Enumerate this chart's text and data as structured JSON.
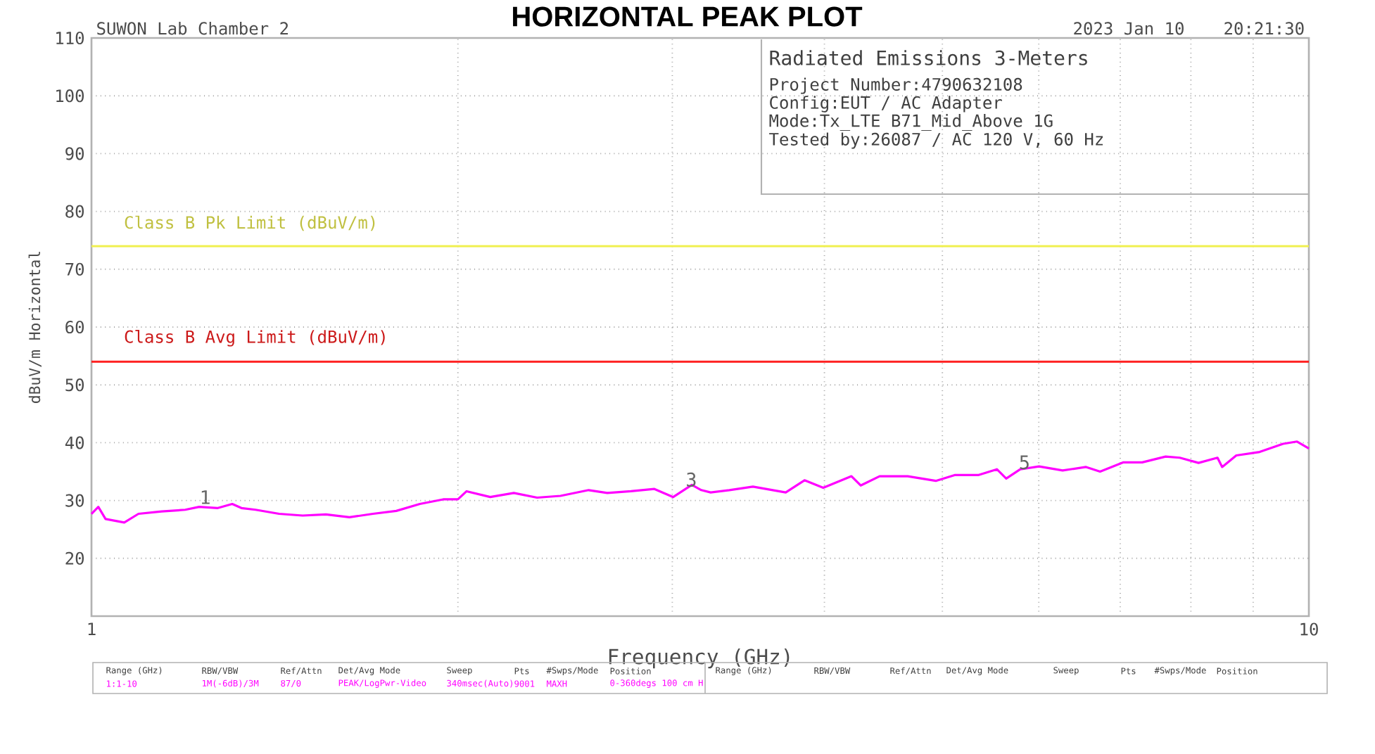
{
  "chart_data": {
    "type": "line",
    "title": "HORIZONTAL PEAK PLOT",
    "xlabel": "Frequency (GHz)",
    "ylabel": "dBuV/m Horizontal",
    "log": "x",
    "grid": true,
    "xlim": [
      1,
      10
    ],
    "xticks": [
      1,
      {
        "value": 2,
        "label": null
      },
      {
        "value": 3,
        "label": null
      },
      {
        "value": 4,
        "label": null
      },
      {
        "value": 5,
        "label": null
      },
      {
        "value": 6,
        "label": null
      },
      {
        "value": 7,
        "label": null
      },
      {
        "value": 8,
        "label": null
      },
      {
        "value": 9,
        "label": null
      },
      10
    ],
    "ylim": [
      10,
      110
    ],
    "yticks": [
      20,
      30,
      40,
      50,
      60,
      70,
      80,
      90,
      100,
      110
    ],
    "ref_lines": [
      {
        "axis": "y",
        "value": 74,
        "label": "Class B Pk Limit (dBuV/m)",
        "color": "#f0f050"
      },
      {
        "axis": "y",
        "value": 54,
        "label": "Class B Avg Limit (dBuV/m)",
        "color": "#ff2020"
      }
    ],
    "series": [
      {
        "color": "#ff00ff",
        "x": [
          1.0,
          1.013,
          1.027,
          1.064,
          1.093,
          1.142,
          1.194,
          1.226,
          1.27,
          1.305,
          1.328,
          1.364,
          1.426,
          1.491,
          1.558,
          1.629,
          1.703,
          1.78,
          1.861,
          1.945,
          2.0,
          2.033,
          2.126,
          2.223,
          2.323,
          2.428,
          2.561,
          2.653,
          2.774,
          2.9,
          3.005,
          3.113,
          3.169,
          3.226,
          3.342,
          3.494,
          3.718,
          3.853,
          3.992,
          4.21,
          4.284,
          4.44,
          4.683,
          4.938,
          5.117,
          5.35,
          5.543,
          5.642,
          5.794,
          6.003,
          6.277,
          6.561,
          6.738,
          7.043,
          7.297,
          7.627,
          7.834,
          8.117,
          8.413,
          8.488,
          8.718,
          9.111,
          9.524,
          9.779,
          10.0
        ],
        "values": [
          27.7,
          28.9,
          26.8,
          26.2,
          27.7,
          28.1,
          28.4,
          28.9,
          28.7,
          29.4,
          28.7,
          28.4,
          27.7,
          27.4,
          27.6,
          27.1,
          27.7,
          28.2,
          29.4,
          30.2,
          30.2,
          31.6,
          30.6,
          31.3,
          30.5,
          30.8,
          31.8,
          31.3,
          31.6,
          32.0,
          30.6,
          32.7,
          31.8,
          31.4,
          31.8,
          32.4,
          31.4,
          33.5,
          32.2,
          34.2,
          32.6,
          34.2,
          34.2,
          33.4,
          34.4,
          34.4,
          35.4,
          33.8,
          35.4,
          35.9,
          35.2,
          35.8,
          35.0,
          36.6,
          36.6,
          37.6,
          37.4,
          36.5,
          37.4,
          35.8,
          37.8,
          38.4,
          39.8,
          40.2,
          39.0
        ]
      }
    ],
    "annotations": [
      "SUWON Lab Chamber 2",
      "2023 Jan 10",
      "20:21:30",
      "Radiated Emissions 3-Meters",
      "Project Number:4790632108",
      "Config:EUT / AC Adapter",
      "Mode:Tx_LTE B71_Mid_Above 1G",
      "Tested by:26087 / AC 120 V, 60 Hz",
      {
        "text": "1",
        "x": 1.24,
        "y": 29
      },
      {
        "text": "3",
        "x": 3.11,
        "y": 32
      },
      {
        "text": "5",
        "x": 5.84,
        "y": 35
      },
      "Range (GHz)",
      "RBW/VBW",
      "Ref/Attn",
      "Det/Avg Mode",
      "Sweep",
      "Pts",
      "#Swps/Mode",
      "Position",
      "1:1-10",
      "1M(-6dB)/3M",
      "87/0",
      "PEAK/LogPwr-Video",
      "340msec(Auto)",
      "9001",
      "MAXH",
      "0-360degs 100 cm H",
      "Range (GHz)",
      "RBW/VBW",
      "Ref/Attn",
      "Det/Avg Mode",
      "Sweep",
      "Pts",
      "#Swps/Mode",
      "Position"
    ]
  }
}
